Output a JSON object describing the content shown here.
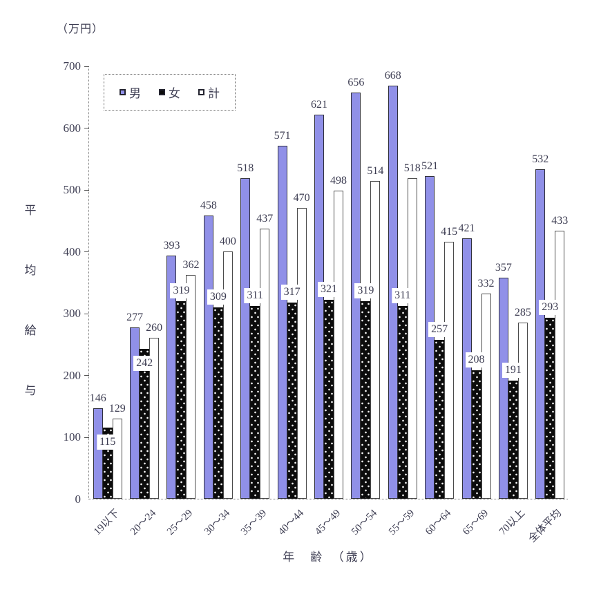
{
  "chart": {
    "unit_label": "（万円）",
    "y_axis_title": "平均給与",
    "x_axis_title": "年　齢　（歳）",
    "legend": [
      {
        "name": "男",
        "color": "#9090e8",
        "pattern": "solid"
      },
      {
        "name": "女",
        "color": "#0c0c0c",
        "pattern": "dots"
      },
      {
        "name": "計",
        "color": "#ffffff",
        "pattern": "solid"
      }
    ]
  },
  "chart_data": {
    "type": "bar",
    "title": "",
    "xlabel": "年齢（歳）",
    "ylabel": "平均給与（万円）",
    "categories": [
      "19以下",
      "20〜24",
      "25〜29",
      "30〜34",
      "35〜39",
      "40〜44",
      "45〜49",
      "50〜54",
      "55〜59",
      "60〜64",
      "65〜69",
      "70以上",
      "全体平均"
    ],
    "series": [
      {
        "name": "男",
        "values": [
          146,
          277,
          393,
          458,
          518,
          571,
          621,
          656,
          668,
          521,
          421,
          357,
          532
        ]
      },
      {
        "name": "女",
        "values": [
          115,
          242,
          319,
          309,
          311,
          317,
          321,
          319,
          311,
          257,
          208,
          191,
          293
        ]
      },
      {
        "name": "計",
        "values": [
          129,
          260,
          362,
          400,
          437,
          470,
          498,
          514,
          518,
          415,
          332,
          285,
          433
        ]
      }
    ],
    "ylim": [
      0,
      700
    ],
    "y_ticks": [
      0,
      100,
      200,
      300,
      400,
      500,
      600,
      700
    ],
    "grid": false,
    "legend_position": "top-left",
    "bar_colors": {
      "男": "#9090e8",
      "女": "#0c0c0c (white dots)",
      "計": "#ffffff"
    },
    "value_labels_shown": true,
    "female_label_inside": [
      true,
      true,
      false,
      false,
      false,
      false,
      false,
      false,
      false,
      false,
      false,
      false,
      false
    ]
  }
}
